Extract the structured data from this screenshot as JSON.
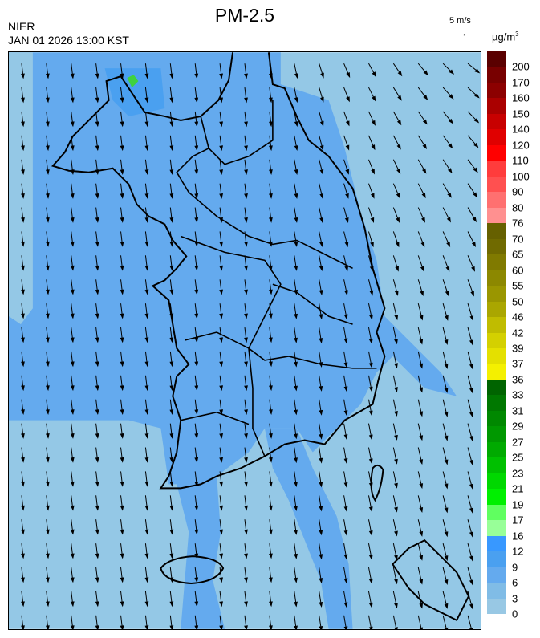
{
  "header": {
    "title": "PM-2.5",
    "org": "NIER",
    "timestamp": "JAN 01 2026 13:00 KST",
    "wind_reference": "5 m/s",
    "wind_reference_arrow": "→",
    "unit": "µg/m",
    "unit_sup": "3"
  },
  "map": {
    "background_color": "#94c8e6",
    "elevated_color": "#64aaee",
    "hotspot_color": "#3fd23f",
    "coast_color": "#000000",
    "boundary_color": "#b8c8d8",
    "wind_arrow_direction": "mostly southward, south-east over the East Sea"
  },
  "legend": {
    "labels": [
      "200",
      "170",
      "160",
      "150",
      "140",
      "120",
      "110",
      "100",
      "90",
      "80",
      "76",
      "70",
      "65",
      "60",
      "55",
      "50",
      "46",
      "42",
      "39",
      "37",
      "36",
      "33",
      "31",
      "29",
      "27",
      "25",
      "23",
      "21",
      "19",
      "17",
      "16",
      "12",
      "9",
      "6",
      "3",
      "0"
    ],
    "colors": [
      "#5a0000",
      "#780000",
      "#8c0000",
      "#aa0000",
      "#c80000",
      "#e00000",
      "#ff0000",
      "#ff3c3c",
      "#ff5050",
      "#ff7070",
      "#ff9090",
      "#666000",
      "#706a00",
      "#807a00",
      "#8c8800",
      "#9a9600",
      "#aaa600",
      "#c0bc00",
      "#d4d000",
      "#e4e000",
      "#f4f000",
      "#006400",
      "#007800",
      "#008800",
      "#009800",
      "#00aa00",
      "#00c000",
      "#00d800",
      "#00f000",
      "#60ff60",
      "#98ff98",
      "#3898ff",
      "#4aa0f0",
      "#64aaee",
      "#80bce6",
      "#98c8e4"
    ]
  }
}
